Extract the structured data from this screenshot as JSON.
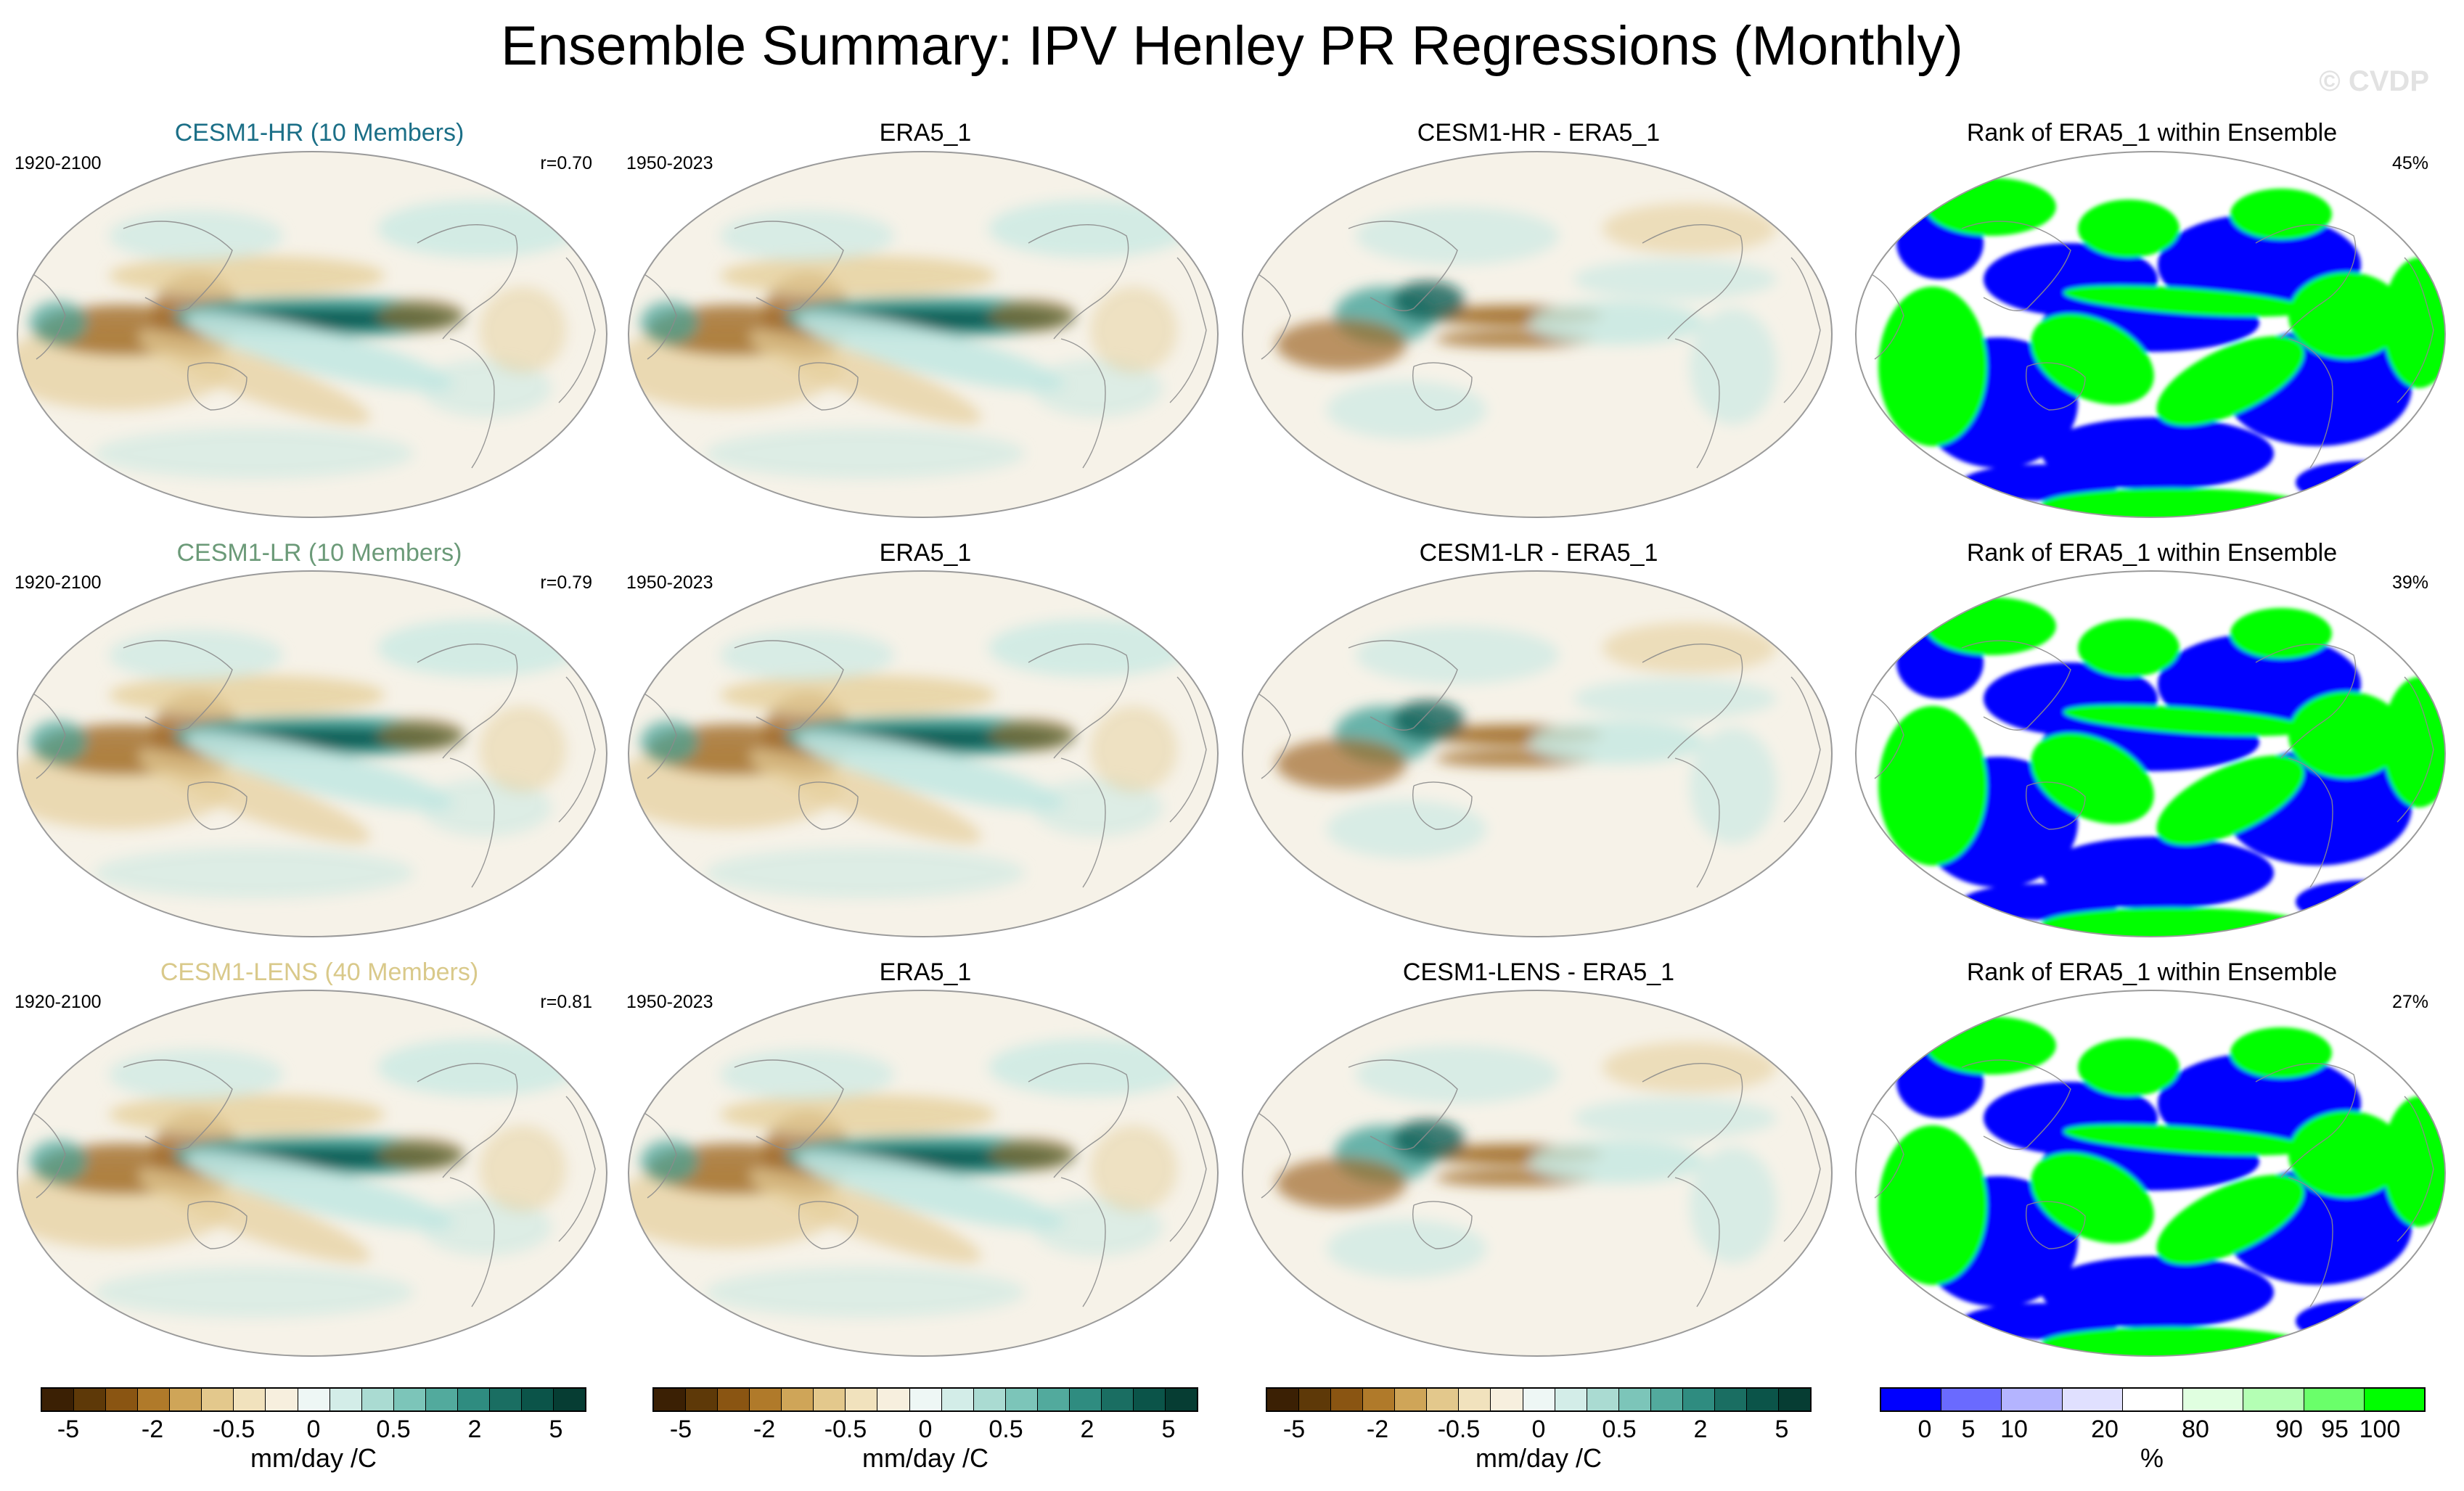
{
  "title": "Ensemble Summary: IPV Henley PR Regressions (Monthly)",
  "watermark": "© CVDP",
  "colors": {
    "brown_dark": "#543005",
    "brown_mid": "#a06a26",
    "brown_light": "#e6cf9b",
    "neutral": "#f6f2e8",
    "teal_light": "#c4e8e2",
    "teal_mid": "#43a49a",
    "teal_dark": "#0b5e55",
    "rank_blue": "#0000ff",
    "rank_green": "#00ff00",
    "rank_white": "#ffffff"
  },
  "rows": [
    {
      "model": {
        "title": "CESM1-HR (10 Members)",
        "title_color": "#1b6f87",
        "years": "1920-2100",
        "corr": "r=0.70"
      },
      "obs": {
        "title": "ERA5_1",
        "years": "1950-2023"
      },
      "diff": {
        "title": "CESM1-HR - ERA5_1"
      },
      "rank": {
        "title": "Rank of ERA5_1 within Ensemble",
        "percent": "45%"
      }
    },
    {
      "model": {
        "title": "CESM1-LR (10 Members)",
        "title_color": "#6b9a78",
        "years": "1920-2100",
        "corr": "r=0.79"
      },
      "obs": {
        "title": "ERA5_1",
        "years": "1950-2023"
      },
      "diff": {
        "title": "CESM1-LR - ERA5_1"
      },
      "rank": {
        "title": "Rank of ERA5_1 within Ensemble",
        "percent": "39%"
      }
    },
    {
      "model": {
        "title": "CESM1-LENS (40 Members)",
        "title_color": "#d9c98a",
        "years": "1920-2100",
        "corr": "r=0.81"
      },
      "obs": {
        "title": "ERA5_1",
        "years": "1950-2023"
      },
      "diff": {
        "title": "CESM1-LENS - ERA5_1"
      },
      "rank": {
        "title": "Rank of ERA5_1 within Ensemble",
        "percent": "27%"
      }
    }
  ],
  "colorbar_pr": {
    "colors": [
      "#3b2004",
      "#5e3908",
      "#8a5512",
      "#b07a2a",
      "#cfa558",
      "#e3c88c",
      "#f1e2bd",
      "#f7efde",
      "#eef7f5",
      "#d3ede8",
      "#aadbd2",
      "#7cc5b9",
      "#52aa9d",
      "#2f8c80",
      "#1a6e62",
      "#0b5449",
      "#063d33"
    ],
    "ticks": [
      "-5",
      "-2",
      "-0.5",
      "0",
      "0.5",
      "2",
      "5"
    ],
    "unit": "mm/day /C"
  },
  "colorbar_rank": {
    "colors": [
      "#0000ff",
      "#6a6aff",
      "#b4b4ff",
      "#e0e0ff",
      "#ffffff",
      "#e0ffe0",
      "#b4ffb4",
      "#6aff6a",
      "#00ff00"
    ],
    "ticks": [
      "0",
      "5",
      "10",
      "20",
      "80",
      "90",
      "95",
      "100"
    ],
    "unit": "%"
  }
}
